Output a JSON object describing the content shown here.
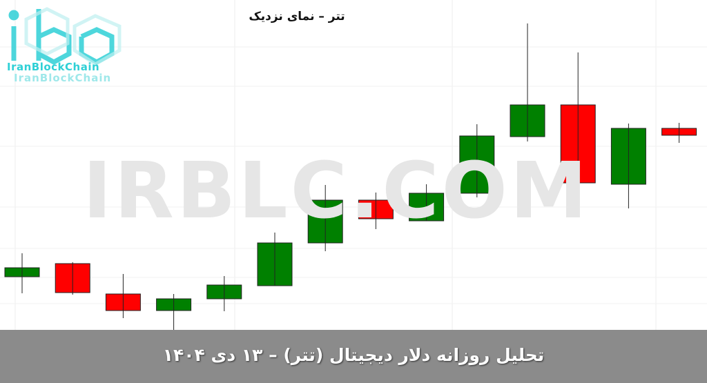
{
  "chart_data": {
    "type": "candlestick",
    "title": "تتر – نمای نزدیک",
    "xlabel": "",
    "ylabel": "",
    "grid": true,
    "colors": {
      "up": "#008000",
      "down": "#ff0000"
    },
    "ylim": [
      0,
      500
    ],
    "candles": [
      {
        "open": 99,
        "high": 133,
        "low": 75,
        "close": 112
      },
      {
        "open": 118,
        "high": 120,
        "low": 73,
        "close": 76
      },
      {
        "open": 74,
        "high": 103,
        "low": 39,
        "close": 50
      },
      {
        "open": 50,
        "high": 74,
        "low": 13,
        "close": 67
      },
      {
        "open": 67,
        "high": 100,
        "low": 49,
        "close": 87
      },
      {
        "open": 86,
        "high": 163,
        "low": 86,
        "close": 148
      },
      {
        "open": 148,
        "high": 232,
        "low": 136,
        "close": 210
      },
      {
        "open": 210,
        "high": 221,
        "low": 168,
        "close": 183
      },
      {
        "open": 180,
        "high": 233,
        "low": 180,
        "close": 220
      },
      {
        "open": 220,
        "high": 320,
        "low": 214,
        "close": 303
      },
      {
        "open": 302,
        "high": 466,
        "low": 295,
        "close": 348
      },
      {
        "open": 348,
        "high": 424,
        "low": 187,
        "close": 235
      },
      {
        "open": 233,
        "high": 321,
        "low": 198,
        "close": 314
      },
      {
        "open": 314,
        "high": 322,
        "low": 293,
        "close": 304
      }
    ]
  },
  "logo": {
    "text": "IranBlockChain",
    "color": "#2fd0d6"
  },
  "watermark": "IRBLC.COM",
  "footer": {
    "caption": "تحلیل روزانه دلار دیجیتال (تتر) – ۱۳ دی ۱۴۰۴",
    "background": "#8b8b8b"
  }
}
